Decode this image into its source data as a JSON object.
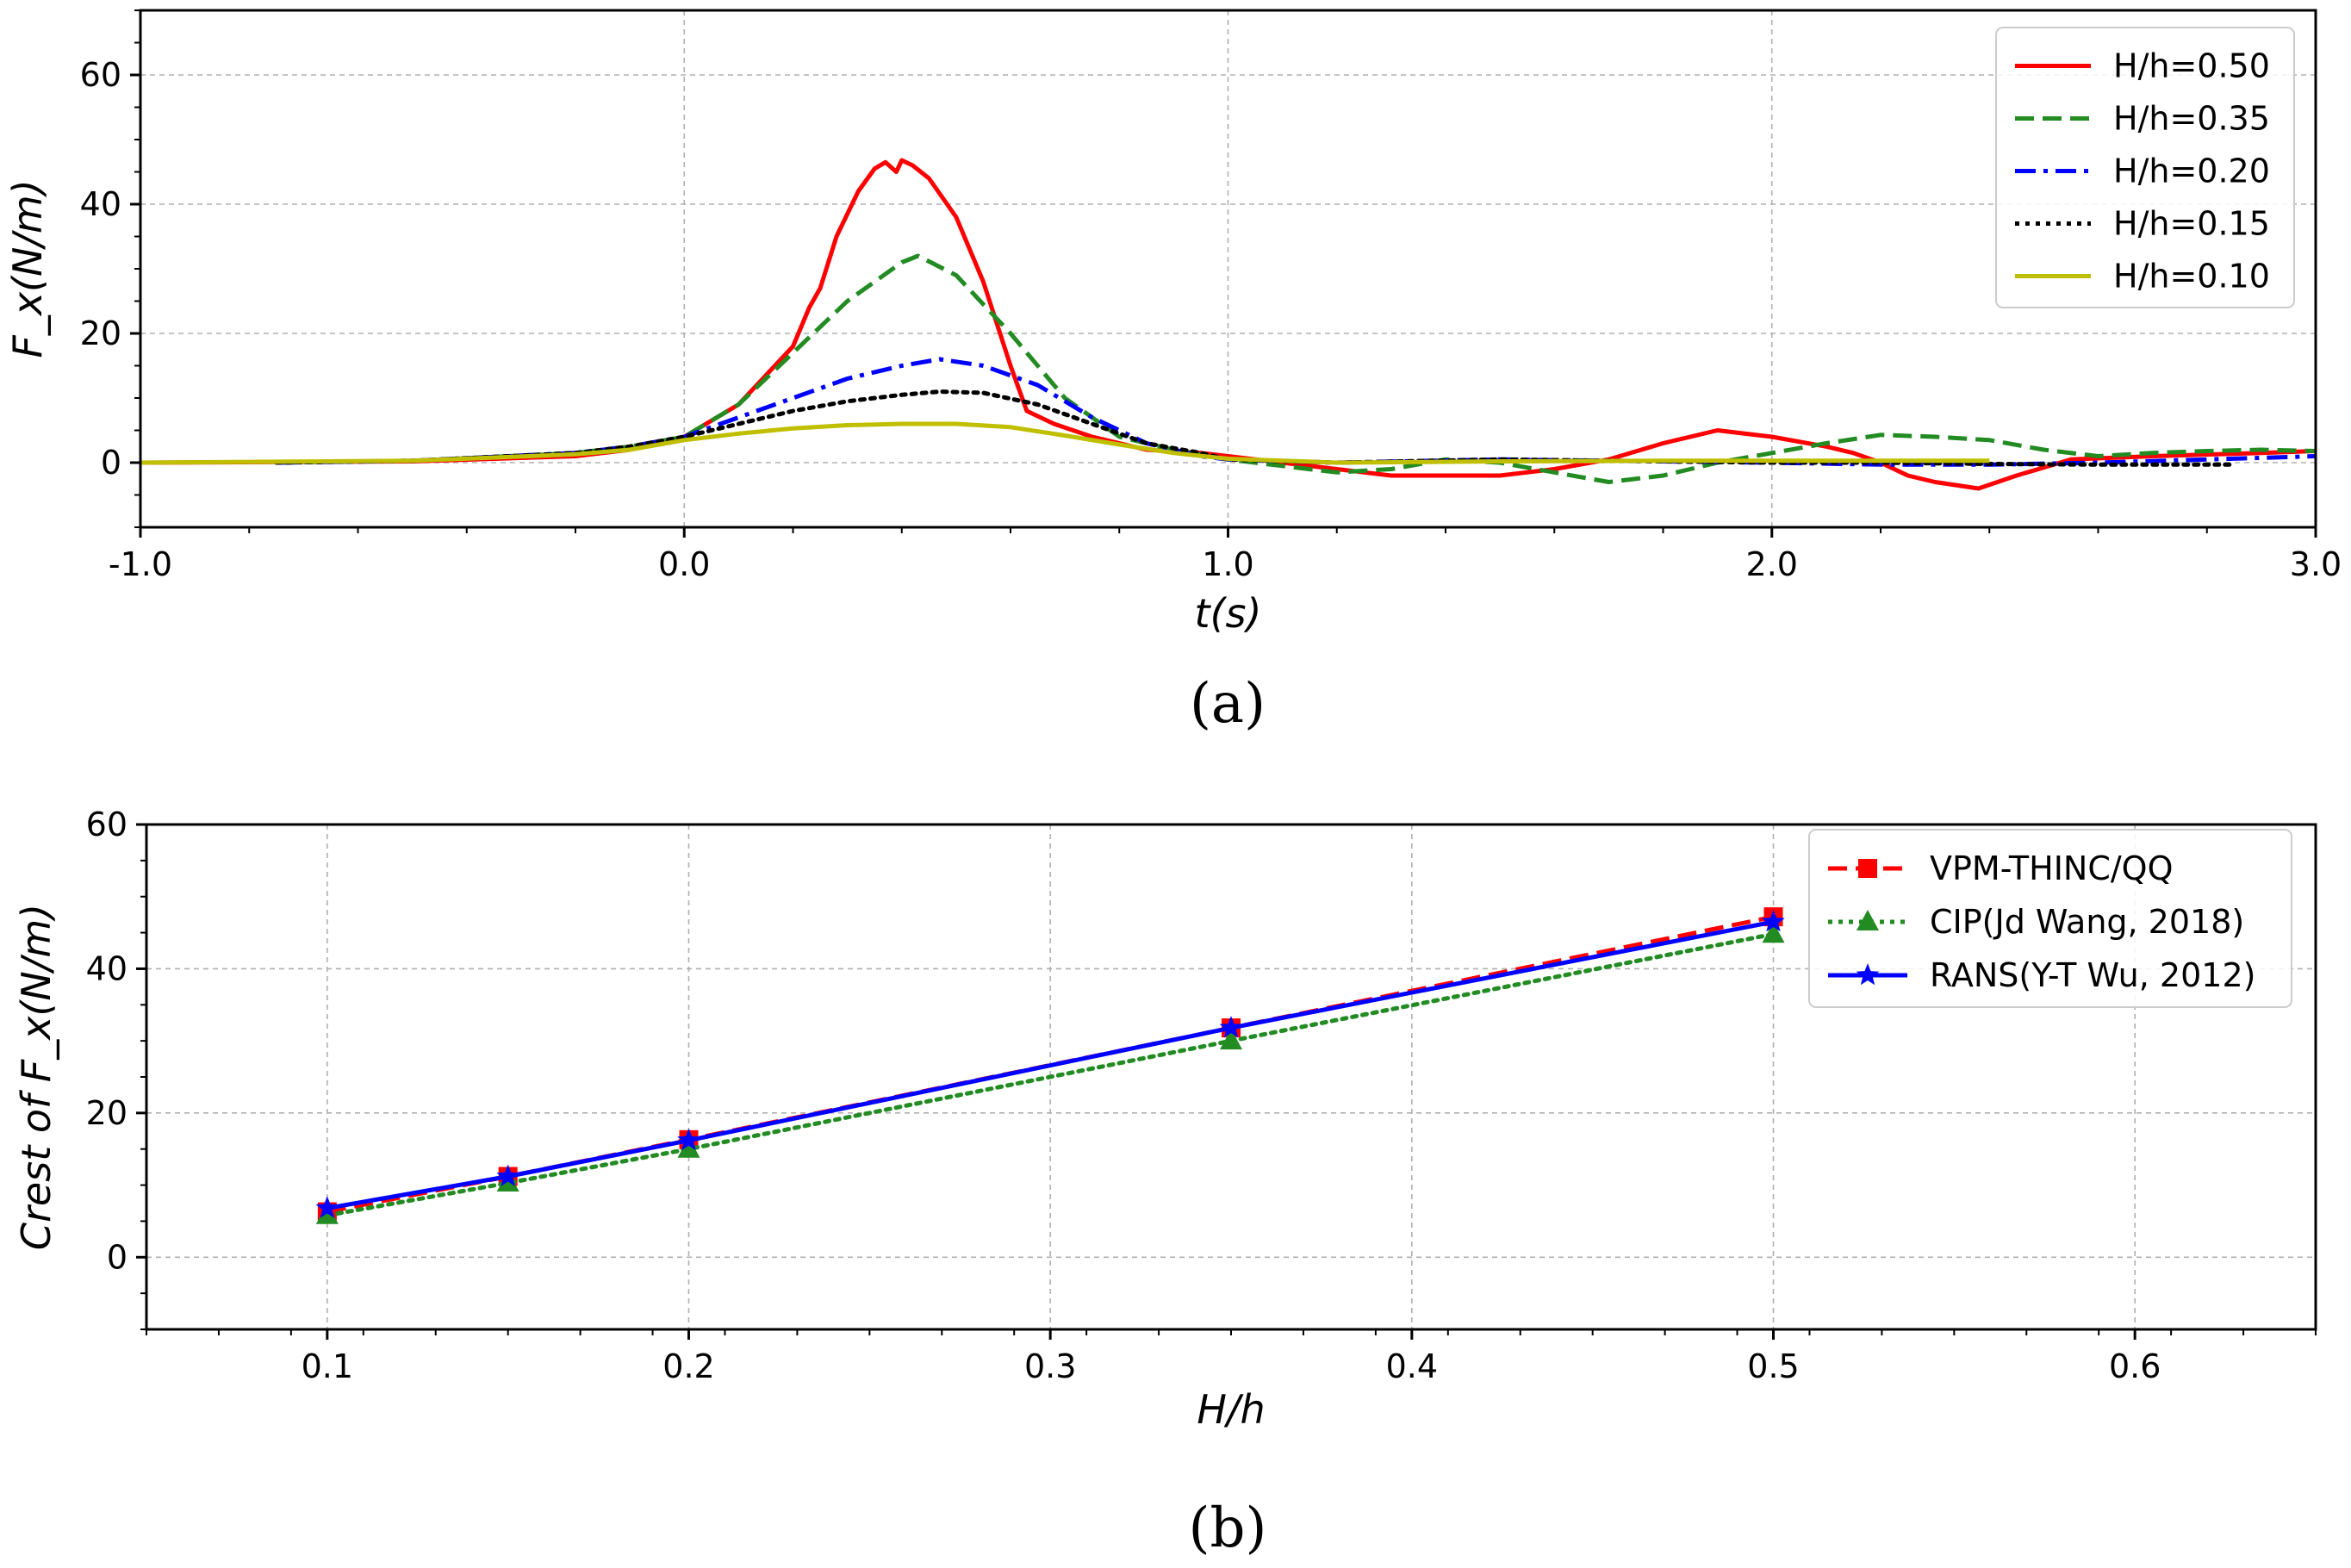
{
  "chart_data": [
    {
      "type": "line",
      "caption": "(a)",
      "xlabel": "t(s)",
      "ylabel": "F_x(N/m)",
      "xlim": [
        -1.0,
        3.0
      ],
      "ylim": [
        -10,
        70
      ],
      "xticks": [
        -1.0,
        0.0,
        1.0,
        2.0,
        3.0
      ],
      "xtick_labels": [
        "-1.0",
        "0.0",
        "1.0",
        "2.0",
        "3.0"
      ],
      "yticks": [
        0,
        20,
        40,
        60
      ],
      "ytick_labels": [
        "0",
        "20",
        "40",
        "60"
      ],
      "grid": true,
      "legend_position": "top-right",
      "series": [
        {
          "name": "H/h=0.50",
          "color": "#ff0000",
          "style": "solid",
          "x": [
            -1.0,
            -0.5,
            -0.2,
            -0.1,
            0.0,
            0.1,
            0.2,
            0.23,
            0.25,
            0.28,
            0.32,
            0.35,
            0.37,
            0.39,
            0.4,
            0.42,
            0.45,
            0.5,
            0.55,
            0.6,
            0.63,
            0.68,
            0.75,
            0.85,
            0.95,
            1.0,
            1.1,
            1.2,
            1.3,
            1.5,
            1.6,
            1.7,
            1.8,
            1.9,
            2.0,
            2.1,
            2.15,
            2.2,
            2.25,
            2.3,
            2.38,
            2.45,
            2.55,
            2.7,
            2.9,
            3.0
          ],
          "y": [
            0,
            0.2,
            1,
            2,
            4,
            9,
            18,
            24,
            27,
            35,
            42,
            45.5,
            46.5,
            45,
            46.8,
            46,
            44,
            38,
            28,
            15,
            8,
            6,
            4,
            2,
            1.5,
            1,
            0,
            -1,
            -2,
            -2,
            -1,
            0.5,
            3,
            5,
            4,
            2.5,
            1.5,
            0,
            -2,
            -3,
            -4,
            -2,
            0.5,
            1,
            1.5,
            1.8
          ]
        },
        {
          "name": "H/h=0.35",
          "color": "#228b22",
          "style": "dashed",
          "x": [
            -0.75,
            -0.5,
            -0.2,
            -0.1,
            0.0,
            0.1,
            0.2,
            0.3,
            0.4,
            0.43,
            0.5,
            0.6,
            0.7,
            0.8,
            0.9,
            1.0,
            1.1,
            1.2,
            1.3,
            1.4,
            1.5,
            1.6,
            1.7,
            1.8,
            1.9,
            2.0,
            2.1,
            2.2,
            2.3,
            2.4,
            2.5,
            2.6,
            2.7,
            2.8,
            2.9,
            3.0
          ],
          "y": [
            0,
            0.3,
            1.5,
            2.5,
            4,
            9,
            17,
            25,
            31,
            32,
            29,
            20,
            10,
            4,
            2,
            0.5,
            -0.5,
            -1.5,
            -1,
            0.5,
            0,
            -1.5,
            -3,
            -2,
            0,
            1.5,
            3,
            4.3,
            4,
            3.5,
            2,
            1,
            1.5,
            1.8,
            2,
            1.8
          ]
        },
        {
          "name": "H/h=0.20",
          "color": "#0000ff",
          "style": "dashdot",
          "x": [
            -0.75,
            -0.5,
            -0.2,
            -0.1,
            0.0,
            0.1,
            0.2,
            0.3,
            0.4,
            0.47,
            0.55,
            0.65,
            0.75,
            0.85,
            0.95,
            1.0,
            1.2,
            1.5,
            1.8,
            2.0,
            2.2,
            2.4,
            2.6,
            2.8,
            3.0
          ],
          "y": [
            0,
            0.3,
            1.5,
            2.5,
            4,
            7,
            10,
            13,
            15,
            16,
            15,
            12,
            7,
            3,
            1,
            0.5,
            0,
            0.5,
            0.2,
            0,
            -0.3,
            -0.3,
            0,
            0.5,
            1
          ]
        },
        {
          "name": "H/h=0.15",
          "color": "#000000",
          "style": "dotted",
          "x": [
            -0.75,
            -0.5,
            -0.2,
            -0.1,
            0.0,
            0.1,
            0.2,
            0.3,
            0.4,
            0.47,
            0.55,
            0.65,
            0.75,
            0.85,
            0.95,
            1.0,
            1.2,
            1.5,
            1.8,
            2.0,
            2.2,
            2.4,
            2.6,
            2.8,
            2.85
          ],
          "y": [
            0,
            0.3,
            1.5,
            2.5,
            4,
            6,
            8,
            9.5,
            10.5,
            11,
            10.8,
            9,
            6,
            3,
            1.5,
            0.5,
            0,
            0.5,
            0.2,
            0,
            0,
            -0.2,
            -0.3,
            -0.3,
            -0.3
          ]
        },
        {
          "name": "H/h=0.10",
          "color": "#bfbf00",
          "style": "solid",
          "x": [
            -1.0,
            -0.5,
            -0.2,
            -0.1,
            0.0,
            0.1,
            0.2,
            0.3,
            0.4,
            0.5,
            0.6,
            0.7,
            0.8,
            0.9,
            1.0,
            1.2,
            1.5,
            1.8,
            2.0,
            2.2,
            2.4
          ],
          "y": [
            0,
            0.3,
            1.3,
            2,
            3.5,
            4.5,
            5.3,
            5.8,
            6,
            6,
            5.5,
            4.2,
            2.8,
            1.5,
            0.6,
            0,
            0.2,
            0.3,
            0.3,
            0.3,
            0.3
          ]
        }
      ]
    },
    {
      "type": "line",
      "caption": "(b)",
      "xlabel": "H/h",
      "ylabel": "Crest of F_x(N/m)",
      "xlim": [
        0.05,
        0.65
      ],
      "ylim": [
        -10,
        60
      ],
      "xticks": [
        0.1,
        0.2,
        0.3,
        0.4,
        0.5,
        0.6
      ],
      "xtick_labels": [
        "0.1",
        "0.2",
        "0.3",
        "0.4",
        "0.5",
        "0.6"
      ],
      "yticks": [
        0,
        20,
        40,
        60
      ],
      "ytick_labels": [
        "0",
        "20",
        "40",
        "60"
      ],
      "grid": true,
      "legend_position": "top-right",
      "series": [
        {
          "name": "VPM-THINC/QQ",
          "color": "#ff0000",
          "style": "dashed",
          "marker": "square",
          "x": [
            0.1,
            0.15,
            0.2,
            0.35,
            0.5
          ],
          "y": [
            6.3,
            11.2,
            16.3,
            31.8,
            47.2
          ]
        },
        {
          "name": "CIP(Jd Wang, 2018)",
          "color": "#228b22",
          "style": "dotted",
          "marker": "triangle",
          "x": [
            0.1,
            0.15,
            0.2,
            0.35,
            0.5
          ],
          "y": [
            5.8,
            10.3,
            15.0,
            30.0,
            44.8
          ]
        },
        {
          "name": "RANS(Y-T Wu, 2012)",
          "color": "#0000ff",
          "style": "solid",
          "marker": "star",
          "x": [
            0.1,
            0.15,
            0.2,
            0.35,
            0.5
          ],
          "y": [
            6.8,
            11.2,
            16.2,
            31.8,
            46.5
          ]
        }
      ]
    }
  ]
}
